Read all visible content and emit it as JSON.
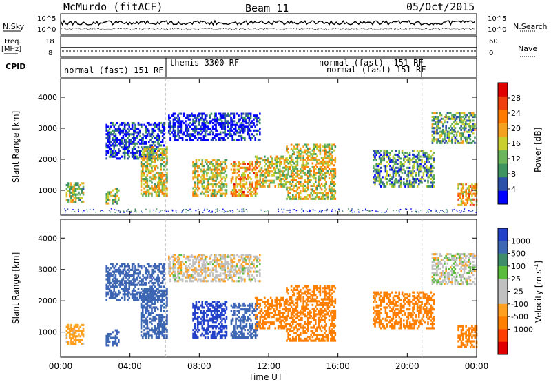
{
  "header": {
    "station": "McMurdo (fitACF)",
    "beam": "Beam 11",
    "date": "05/Oct/2015"
  },
  "sky_panel": {
    "left_label": "N.Sky",
    "right_label": "N.Search",
    "left_ticks": [
      "10^5",
      "10^0"
    ],
    "right_ticks": [
      "10^5",
      "10^0"
    ]
  },
  "freq_panel": {
    "left_label_line1": "Freq.",
    "left_label_line2": "[MHz]",
    "right_label": "Nave",
    "left_ticks": [
      "18",
      "8"
    ],
    "right_ticks": [
      "60",
      "0"
    ]
  },
  "cpid": {
    "label": "CPID",
    "modes": [
      {
        "text": "normal (fast) 151 RF"
      },
      {
        "text": "themis 3300 RF"
      },
      {
        "text": "normal (fast) -151 RF"
      },
      {
        "text": "normal (fast) 151 RF"
      }
    ]
  },
  "colors": {
    "power_scale": [
      "#0000ff",
      "#2c4fa8",
      "#3d9460",
      "#6cb55c",
      "#c9cf2e",
      "#f4a020",
      "#ff7a00",
      "#f04010",
      "#e00000"
    ],
    "velocity_scale": [
      "#2342c9",
      "#3d66b4",
      "#3f8c6a",
      "#5cba3c",
      "#c0c0c0",
      "#c0c0c0",
      "#ffa020",
      "#ff7f00",
      "#ff4000",
      "#e00000"
    ]
  },
  "chart_data": [
    {
      "type": "heatmap",
      "name": "Power",
      "ylabel": "Slant Range [km]",
      "ylim": [
        200,
        4600
      ],
      "yticks": [
        "1000",
        "2000",
        "3000",
        "4000"
      ],
      "xlim_hours": [
        0,
        24
      ],
      "colorbar": {
        "label": "Power [dB]",
        "range": [
          0,
          32
        ],
        "ticks": [
          "4",
          "8",
          "12",
          "16",
          "20",
          "24",
          "28"
        ]
      },
      "echo_regions": [
        {
          "t0": 0.3,
          "t1": 1.3,
          "r0": 600,
          "r1": 1250,
          "level": 0.45
        },
        {
          "t0": 2.6,
          "t1": 3.3,
          "r0": 550,
          "r1": 1050,
          "level": 0.4
        },
        {
          "t0": 2.6,
          "t1": 6.0,
          "r0": 2000,
          "r1": 3200,
          "level": 0.1
        },
        {
          "t0": 4.6,
          "t1": 6.1,
          "r0": 800,
          "r1": 2400,
          "level": 0.5
        },
        {
          "t0": 7.6,
          "t1": 9.6,
          "r0": 800,
          "r1": 2000,
          "level": 0.5
        },
        {
          "t0": 9.8,
          "t1": 11.3,
          "r0": 800,
          "r1": 1900,
          "level": 0.65
        },
        {
          "t0": 11.2,
          "t1": 13.0,
          "r0": 1100,
          "r1": 2100,
          "level": 0.5
        },
        {
          "t0": 13.0,
          "t1": 15.8,
          "r0": 700,
          "r1": 2500,
          "level": 0.5
        },
        {
          "t0": 6.2,
          "t1": 11.5,
          "r0": 2600,
          "r1": 3500,
          "level": 0.05
        },
        {
          "t0": 18.0,
          "t1": 21.5,
          "r0": 1100,
          "r1": 2300,
          "level": 0.3
        },
        {
          "t0": 21.4,
          "t1": 23.9,
          "r0": 2500,
          "r1": 3500,
          "level": 0.35
        },
        {
          "t0": 22.9,
          "t1": 24.0,
          "r0": 500,
          "r1": 1200,
          "level": 0.6
        }
      ]
    },
    {
      "type": "heatmap",
      "name": "Velocity",
      "ylabel": "Slant Range [km]",
      "xlabel": "Time UT",
      "ylim": [
        200,
        4600
      ],
      "yticks": [
        "1000",
        "2000",
        "3000",
        "4000"
      ],
      "xlim_hours": [
        0,
        24
      ],
      "xticks": [
        "00:00",
        "04:00",
        "08:00",
        "12:00",
        "16:00",
        "20:00",
        "00:00"
      ],
      "colorbar": {
        "label": "Velocity [m s^-1]",
        "label_main": "Velocity [m s",
        "label_sup": "-1",
        "label_end": "]",
        "levels": [
          1000,
          500,
          100,
          25,
          -25,
          -100,
          -500,
          -1000
        ],
        "ticks": [
          "1000",
          "500",
          "100",
          "25",
          "-25",
          "-100",
          "-500",
          "-1000"
        ]
      },
      "echo_regions": [
        {
          "t0": 0.3,
          "t1": 1.3,
          "r0": 600,
          "r1": 1250,
          "v": -60
        },
        {
          "t0": 2.6,
          "t1": 3.3,
          "r0": 550,
          "r1": 1050,
          "v": 150
        },
        {
          "t0": 2.6,
          "t1": 6.0,
          "r0": 2000,
          "r1": 3200,
          "v": 200
        },
        {
          "t0": 4.6,
          "t1": 6.1,
          "r0": 800,
          "r1": 2400,
          "v": 350
        },
        {
          "t0": 7.6,
          "t1": 8.6,
          "r0": 800,
          "r1": 1900,
          "v": 900
        },
        {
          "t0": 8.6,
          "t1": 11.3,
          "r0": 800,
          "r1": 1900,
          "v": 200
        },
        {
          "t0": 11.2,
          "t1": 13.0,
          "r0": 1100,
          "r1": 2100,
          "v": -300
        },
        {
          "t0": 13.0,
          "t1": 15.8,
          "r0": 700,
          "r1": 2500,
          "v": -300
        },
        {
          "t0": 6.2,
          "t1": 11.5,
          "r0": 2600,
          "r1": 3500,
          "v": -10
        },
        {
          "t0": 18.0,
          "t1": 21.5,
          "r0": 1100,
          "r1": 2300,
          "v": -300
        },
        {
          "t0": 21.4,
          "t1": 23.9,
          "r0": 2500,
          "r1": 3500,
          "v": 0
        },
        {
          "t0": 22.9,
          "t1": 24.0,
          "r0": 500,
          "r1": 1200,
          "v": -300
        }
      ]
    }
  ]
}
